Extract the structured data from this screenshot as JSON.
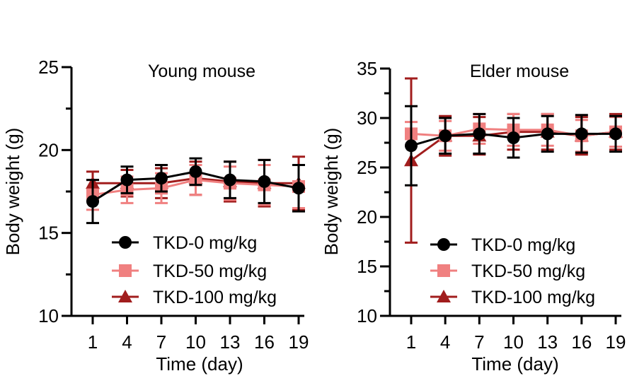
{
  "chart_data": [
    {
      "type": "line",
      "title": "Young mouse",
      "xlabel": "Time (day)",
      "ylabel": "Body weight (g)",
      "x": [
        1,
        4,
        7,
        10,
        13,
        16,
        19
      ],
      "xticks": [
        "1",
        "4",
        "7",
        "10",
        "13",
        "16",
        "19"
      ],
      "ylim": [
        10,
        25
      ],
      "yticks": [
        "10",
        "15",
        "20",
        "25"
      ],
      "legend_position": "bottom-left",
      "series": [
        {
          "name": "TKD-0 mg/kg",
          "marker": "circle",
          "color": "#000000",
          "values": [
            16.9,
            18.2,
            18.3,
            18.7,
            18.2,
            18.1,
            17.7
          ],
          "errors": [
            1.3,
            0.8,
            0.8,
            0.8,
            1.1,
            1.3,
            1.4
          ]
        },
        {
          "name": "TKD-50 mg/kg",
          "marker": "square",
          "color": "#f08080",
          "values": [
            17.3,
            17.6,
            17.7,
            18.2,
            18.0,
            17.9,
            17.8
          ],
          "errors": [
            0.9,
            0.8,
            0.9,
            0.9,
            1.0,
            1.2,
            1.3
          ]
        },
        {
          "name": "TKD-100 mg/kg",
          "marker": "triangle",
          "color": "#a11d1d",
          "values": [
            18.0,
            18.0,
            18.0,
            18.3,
            18.1,
            18.0,
            18.0
          ],
          "errors": [
            0.7,
            0.8,
            0.9,
            1.0,
            1.2,
            1.4,
            1.6
          ]
        }
      ]
    },
    {
      "type": "line",
      "title": "Elder mouse",
      "xlabel": "Time (day)",
      "ylabel": "Body weight (g)",
      "x": [
        1,
        4,
        7,
        10,
        13,
        16,
        19
      ],
      "xticks": [
        "1",
        "4",
        "7",
        "10",
        "13",
        "16",
        "19"
      ],
      "ylim": [
        10,
        35
      ],
      "yticks": [
        "10",
        "15",
        "20",
        "25",
        "30",
        "35"
      ],
      "legend_position": "bottom-left",
      "series": [
        {
          "name": "TKD-0 mg/kg",
          "marker": "circle",
          "color": "#000000",
          "values": [
            27.2,
            28.2,
            28.4,
            28.0,
            28.4,
            28.4,
            28.4
          ],
          "errors": [
            4.0,
            1.8,
            2.0,
            2.0,
            1.8,
            1.9,
            1.8
          ]
        },
        {
          "name": "TKD-50 mg/kg",
          "marker": "square",
          "color": "#f08080",
          "values": [
            28.4,
            28.2,
            28.9,
            28.8,
            28.8,
            28.2,
            28.6
          ],
          "errors": [
            1.2,
            1.5,
            1.5,
            1.6,
            1.6,
            1.6,
            1.5
          ]
        },
        {
          "name": "TKD-100 mg/kg",
          "marker": "triangle",
          "color": "#a11d1d",
          "values": [
            25.7,
            28.2,
            28.2,
            28.6,
            28.6,
            28.2,
            28.6
          ],
          "errors": [
            8.3,
            2.0,
            1.9,
            1.8,
            1.8,
            1.9,
            1.8
          ]
        }
      ]
    }
  ]
}
